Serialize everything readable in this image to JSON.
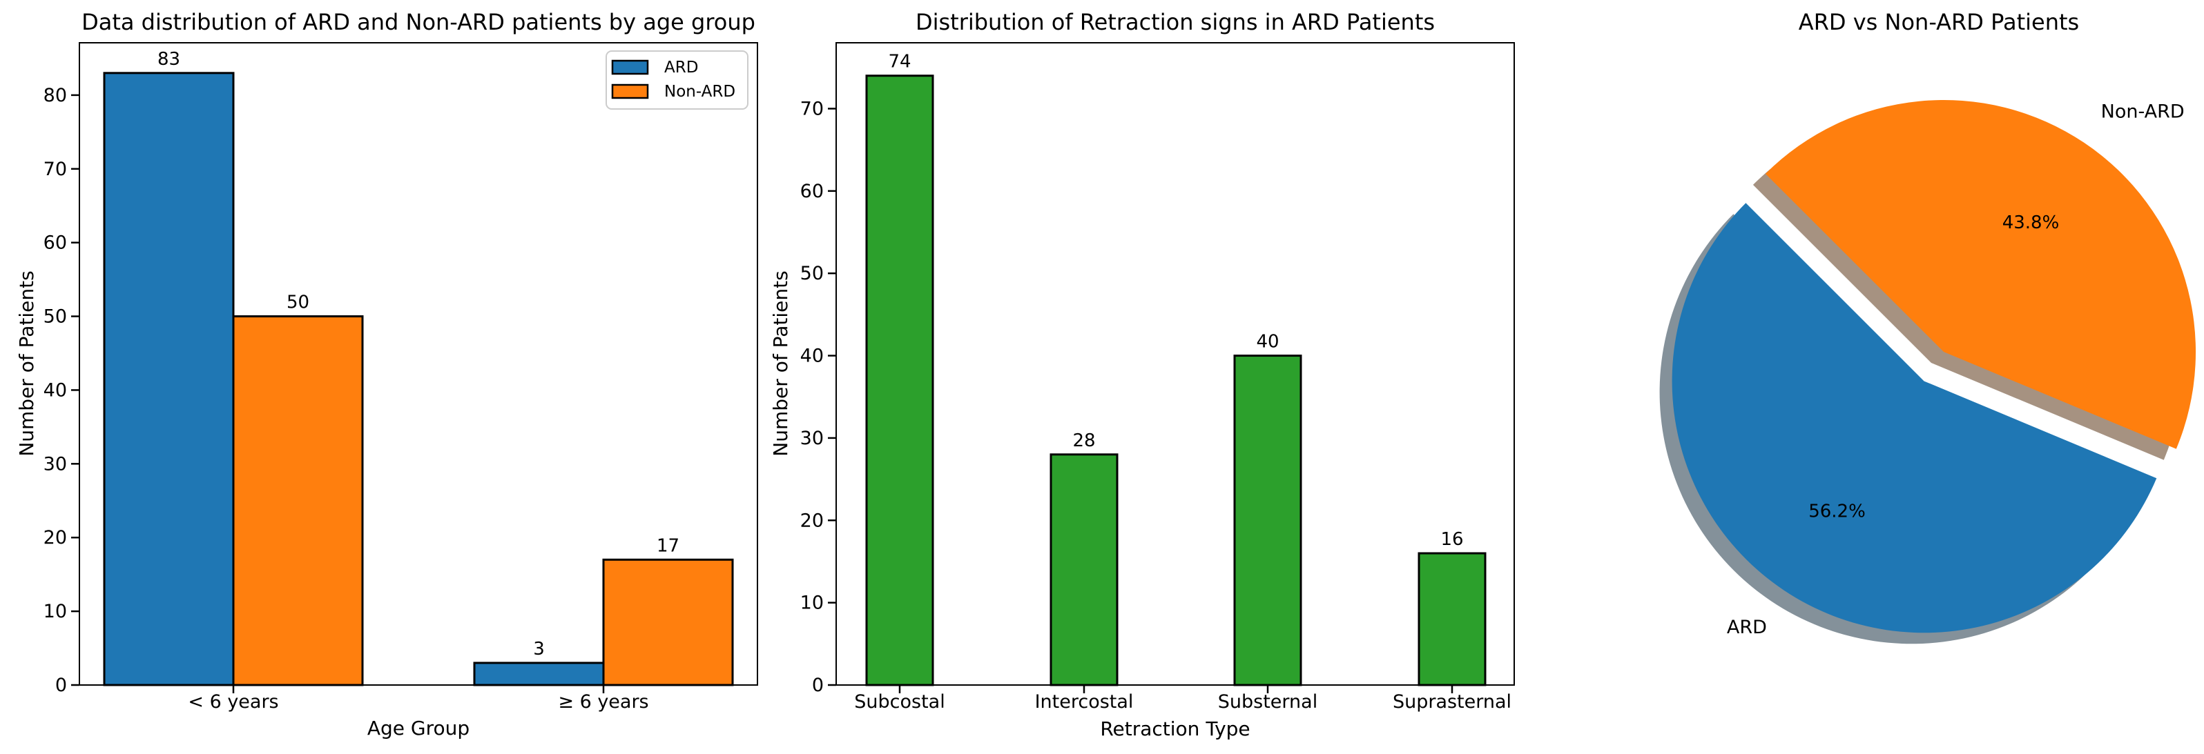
{
  "figure": {
    "background_color": "#ffffff",
    "text_color": "#000000"
  },
  "chart_data": [
    {
      "type": "bar",
      "title": "Data distribution of ARD and Non-ARD patients by age group",
      "xlabel": "Age Group",
      "ylabel": "Number of Patients",
      "categories": [
        "< 6 years",
        "≥ 6 years"
      ],
      "series": [
        {
          "name": "ARD",
          "color": "#1f77b4",
          "values": [
            83,
            3
          ]
        },
        {
          "name": "Non-ARD",
          "color": "#ff7f0e",
          "values": [
            50,
            17
          ]
        }
      ],
      "bar_edge_color": "#000000",
      "yticks": [
        0,
        10,
        20,
        30,
        40,
        50,
        60,
        70,
        80
      ],
      "ylim": [
        0,
        87.1
      ],
      "legend": {
        "position": "upper right",
        "entries": [
          "ARD",
          "Non-ARD"
        ]
      },
      "grid": false
    },
    {
      "type": "bar",
      "title": "Distribution of Retraction signs in ARD Patients",
      "xlabel": "Retraction Type",
      "ylabel": "Number of Patients",
      "categories": [
        "Subcostal",
        "Intercostal",
        "Substernal",
        "Suprasternal"
      ],
      "values": [
        74,
        28,
        40,
        16
      ],
      "color": "#2ca02c",
      "bar_edge_color": "#000000",
      "yticks": [
        0,
        10,
        20,
        30,
        40,
        50,
        60,
        70
      ],
      "ylim": [
        0,
        78
      ],
      "grid": false
    },
    {
      "type": "pie",
      "title": "ARD vs Non-ARD Patients",
      "labels": [
        "ARD",
        "Non-ARD"
      ],
      "values": [
        56.2,
        43.8
      ],
      "percent_labels": [
        "56.2%",
        "43.8%"
      ],
      "colors": [
        "#1f77b4",
        "#ff7f0e"
      ],
      "start_angle": 135,
      "explode": [
        0.14,
        0
      ],
      "shadow": true
    }
  ]
}
